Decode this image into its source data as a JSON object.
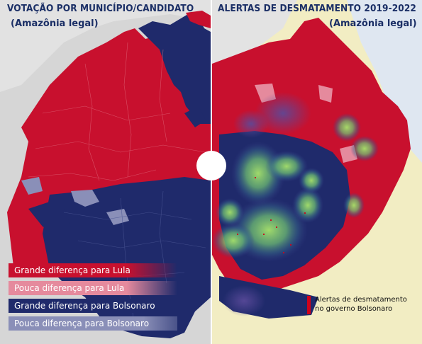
{
  "left_panel": {
    "title": "VOTAÇÃO POR MUNICÍPIO/CANDIDATO",
    "subtitle": "(Amazônia legal)"
  },
  "right_panel": {
    "title": "ALERTAS DE DESMATAMENTO 2019-2022",
    "subtitle": "(Amazônia legal)"
  },
  "legend": {
    "items": [
      {
        "label": "Grande diferença para Lula",
        "color": "#c8102e"
      },
      {
        "label": "Pouca diferença para Lula",
        "color": "#e58a9d"
      },
      {
        "label": "Grande diferença para Bolsonaro",
        "color": "#1f2a6b"
      },
      {
        "label": "Pouca diferença para Bolsonaro",
        "color": "#8a8fb8"
      }
    ]
  },
  "alerts_legend": {
    "label_line1": "Alertas de desmatamento",
    "label_line2": "no governo Bolsonaro",
    "color": "#d0021b"
  },
  "colors": {
    "lula_strong": "#c8102e",
    "bolsonaro_strong": "#1f2a6b",
    "heat_green": "#7ed957",
    "sea": "#dfe7f1",
    "land_outside": "#f3efc6"
  }
}
